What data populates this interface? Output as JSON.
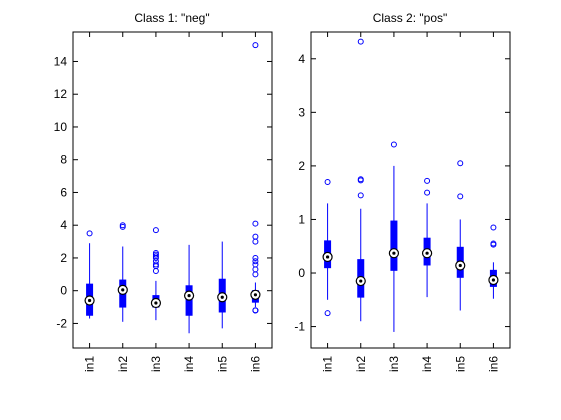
{
  "chart_data": [
    {
      "type": "boxplot",
      "title": "Class 1: \"neg\"",
      "categories": [
        "in1",
        "in2",
        "in3",
        "in4",
        "in5",
        "in6"
      ],
      "ylim": [
        -3.5,
        15.8
      ],
      "yticks": [
        -2,
        0,
        2,
        4,
        6,
        8,
        10,
        12,
        14
      ],
      "boxes": [
        {
          "q1": -1.5,
          "median": -0.6,
          "q3": 0.4,
          "whisker_low": -1.7,
          "whisker_high": 2.9,
          "outliers": [
            3.5
          ]
        },
        {
          "q1": -1.0,
          "median": 0.05,
          "q3": 0.65,
          "whisker_low": -1.9,
          "whisker_high": 2.7,
          "outliers": [
            3.9,
            4.0
          ]
        },
        {
          "q1": -1.0,
          "median": -0.75,
          "q3": -0.3,
          "whisker_low": -1.8,
          "whisker_high": 0.6,
          "outliers": [
            1.2,
            1.5,
            1.8,
            2.0,
            2.2,
            2.3,
            3.7,
            1.6,
            2.1
          ]
        },
        {
          "q1": -1.5,
          "median": -0.3,
          "q3": 0.3,
          "whisker_low": -2.6,
          "whisker_high": 2.8,
          "outliers": []
        },
        {
          "q1": -1.3,
          "median": -0.4,
          "q3": 0.7,
          "whisker_low": -2.3,
          "whisker_high": 3.0,
          "outliers": []
        },
        {
          "q1": -0.7,
          "median": -0.25,
          "q3": 0.0,
          "whisker_low": -1.0,
          "whisker_high": 0.5,
          "outliers": [
            -1.2,
            -1.2,
            -1.2,
            1.0,
            1.3,
            1.6,
            1.8,
            2.0,
            3.0,
            3.3,
            4.1,
            15.0
          ]
        }
      ]
    },
    {
      "type": "boxplot",
      "title": "Class 2: \"pos\"",
      "categories": [
        "in1",
        "in2",
        "in3",
        "in4",
        "in5",
        "in6"
      ],
      "ylim": [
        -1.4,
        4.5
      ],
      "yticks": [
        -1,
        0,
        1,
        2,
        3,
        4
      ],
      "boxes": [
        {
          "q1": 0.1,
          "median": 0.3,
          "q3": 0.6,
          "whisker_low": -0.5,
          "whisker_high": 1.3,
          "outliers": [
            1.7,
            -0.75
          ]
        },
        {
          "q1": -0.45,
          "median": -0.15,
          "q3": 0.25,
          "whisker_low": -0.9,
          "whisker_high": 1.2,
          "outliers": [
            1.45,
            1.73,
            1.75,
            4.32
          ]
        },
        {
          "q1": 0.05,
          "median": 0.37,
          "q3": 0.97,
          "whisker_low": -1.1,
          "whisker_high": 2.0,
          "outliers": [
            2.4
          ]
        },
        {
          "q1": 0.15,
          "median": 0.37,
          "q3": 0.65,
          "whisker_low": -0.45,
          "whisker_high": 1.3,
          "outliers": [
            1.5,
            1.72
          ]
        },
        {
          "q1": -0.08,
          "median": 0.14,
          "q3": 0.48,
          "whisker_low": -0.7,
          "whisker_high": 1.0,
          "outliers": [
            1.43,
            2.05
          ]
        },
        {
          "q1": -0.25,
          "median": -0.13,
          "q3": 0.05,
          "whisker_low": -0.48,
          "whisker_high": 0.2,
          "outliers": [
            0.53,
            0.55,
            0.85
          ]
        }
      ]
    }
  ],
  "colors": {
    "box": "#0000ff",
    "median_marker": "#000000",
    "axes": "#000000"
  }
}
